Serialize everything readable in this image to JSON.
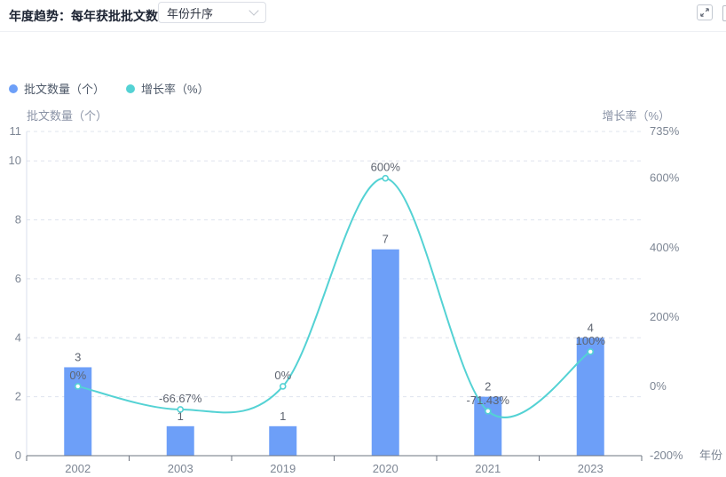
{
  "header": {
    "title": "年度趋势：每年获批批文数",
    "sort_select": {
      "value": "年份升序"
    },
    "expand_icon": "expand-icon"
  },
  "legend": {
    "items": [
      {
        "label": "批文数量（个）",
        "color": "#6D9FF8"
      },
      {
        "label": "增长率（%）",
        "color": "#54D2D4"
      }
    ]
  },
  "chart_data": {
    "type": "bar+line",
    "categories": [
      "2002",
      "2003",
      "2019",
      "2020",
      "2021",
      "2023"
    ],
    "series": [
      {
        "name": "批文数量（个）",
        "type": "bar",
        "axis": "left",
        "color": "#6D9FF8",
        "values": [
          3,
          1,
          1,
          7,
          2,
          4
        ],
        "labels": [
          "3",
          "1",
          "1",
          "7",
          "2",
          "4"
        ]
      },
      {
        "name": "增长率（%）",
        "type": "line",
        "axis": "right",
        "color": "#54D2D4",
        "values": [
          0,
          -66.67,
          0,
          600,
          -71.43,
          100
        ],
        "labels": [
          "0%",
          "-66.67%",
          "0%",
          "600%",
          "-71.43%",
          "100%"
        ]
      }
    ],
    "left_axis": {
      "name": "批文数量（个）",
      "min": 0,
      "max": 11,
      "ticks": [
        0,
        2,
        4,
        6,
        8,
        10,
        11
      ]
    },
    "right_axis": {
      "name": "增长率（%）",
      "min": -200,
      "max": 735,
      "tick_values": [
        -200,
        0,
        200,
        400,
        600,
        735
      ],
      "tick_labels": [
        "-200%",
        "0%",
        "200%",
        "400%",
        "600%",
        "735%"
      ]
    },
    "x_axis": {
      "name": "年份"
    },
    "grid": "dashed-horizontal",
    "legend_position": "top-left",
    "colors": {
      "bar": "#6D9FF8",
      "line": "#54D2D4",
      "grid_line": "#DFE4EE",
      "x_axis_line": "#6E7480",
      "y_axis_line": "#D9DFEC",
      "tick_label": "#7D8694",
      "data_label": "#5E6470"
    }
  }
}
